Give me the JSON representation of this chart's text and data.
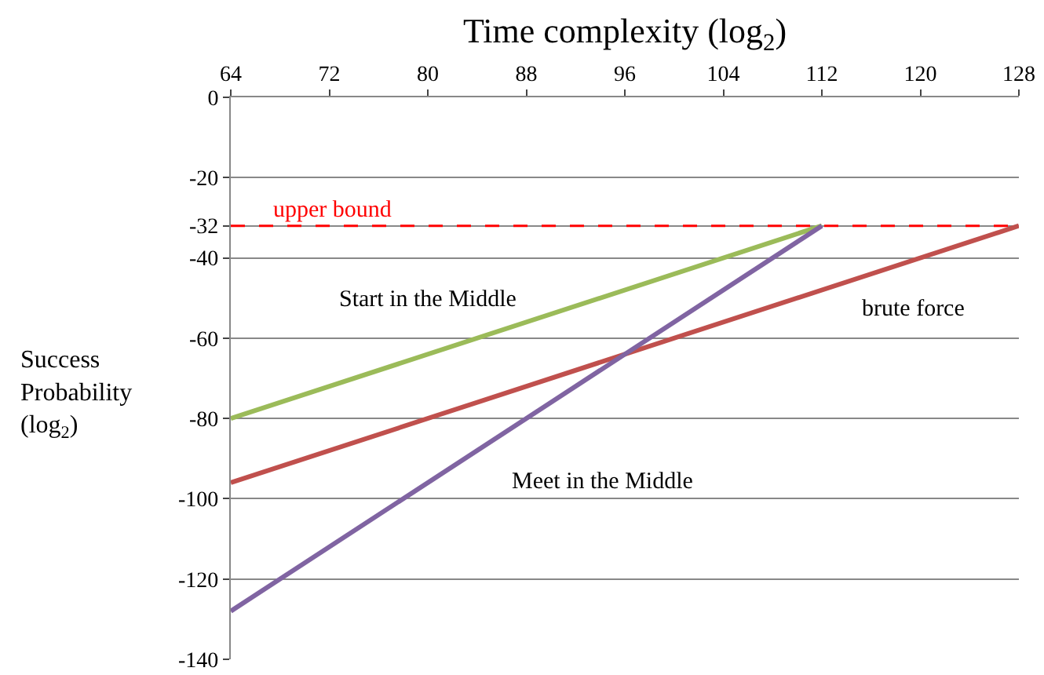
{
  "chart_data": {
    "type": "line",
    "xlabel": "Time complexity (log$_{2}$)",
    "ylabel": "Success Probability (log$_{2}$)",
    "xlim": [
      64,
      128
    ],
    "xticks": [
      64,
      72,
      80,
      88,
      96,
      104,
      112,
      120,
      128
    ],
    "ylim": [
      -140,
      0
    ],
    "yticks": [
      0,
      -20,
      -32,
      -40,
      -60,
      -80,
      -100,
      -120,
      -140
    ],
    "grid": "y",
    "legend": false,
    "marker": "none",
    "line_style": "solid",
    "series": [
      {
        "name": "Start in the Middle",
        "color": "#9bbb59",
        "x": [
          64,
          112
        ],
        "values": [
          -80,
          -32
        ]
      },
      {
        "name": "brute force",
        "color": "#c0504d",
        "x": [
          64,
          128
        ],
        "values": [
          -96,
          -32
        ]
      },
      {
        "name": "Meet in the Middle",
        "color": "#8064a2",
        "x": [
          64,
          112
        ],
        "values": [
          -128,
          -32
        ]
      }
    ],
    "ref_lines": [
      {
        "axis": "y",
        "value": -32,
        "label": "upper bound",
        "color": "#ff0000",
        "line_style": "dashed"
      }
    ]
  }
}
